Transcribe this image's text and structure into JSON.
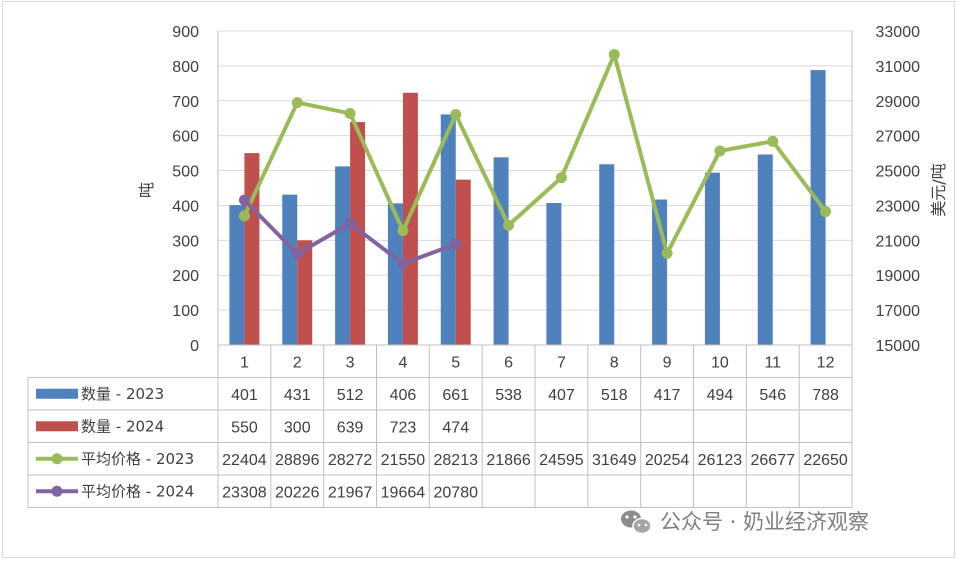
{
  "chart_data": {
    "type": "bar",
    "categories": [
      "1",
      "2",
      "3",
      "4",
      "5",
      "6",
      "7",
      "8",
      "9",
      "10",
      "11",
      "12"
    ],
    "series": [
      {
        "name": "数量 - 2023",
        "type": "bar",
        "axis": "left",
        "color": "#4f81bd",
        "values": [
          401,
          431,
          512,
          406,
          661,
          538,
          407,
          518,
          417,
          494,
          546,
          788
        ]
      },
      {
        "name": "数量 - 2024",
        "type": "bar",
        "axis": "left",
        "color": "#c0504d",
        "values": [
          550,
          300,
          639,
          723,
          474,
          null,
          null,
          null,
          null,
          null,
          null,
          null
        ]
      },
      {
        "name": "平均价格 - 2023",
        "type": "line",
        "axis": "right",
        "color": "#9bbb59",
        "values": [
          22404,
          28896,
          28272,
          21550,
          28213,
          21866,
          24595,
          31649,
          20254,
          26123,
          26677,
          22650
        ]
      },
      {
        "name": "平均价格 - 2024",
        "type": "line",
        "axis": "right",
        "color": "#8064a2",
        "values": [
          23308,
          20226,
          21967,
          19664,
          20780,
          null,
          null,
          null,
          null,
          null,
          null,
          null
        ]
      }
    ],
    "ylabel": "吨",
    "y2label": "美元/吨",
    "ylim": [
      0,
      900
    ],
    "yticks": [
      "0",
      "100",
      "200",
      "300",
      "400",
      "500",
      "600",
      "700",
      "800",
      "900"
    ],
    "y2lim": [
      15000,
      33000
    ],
    "y2ticks": [
      "15000",
      "17000",
      "19000",
      "21000",
      "23000",
      "25000",
      "27000",
      "29000",
      "31000",
      "33000"
    ],
    "grid": true,
    "legend": "data-table"
  },
  "watermark": {
    "text": "公众号 · 奶业经济观察",
    "icon": "wechat-icon"
  }
}
